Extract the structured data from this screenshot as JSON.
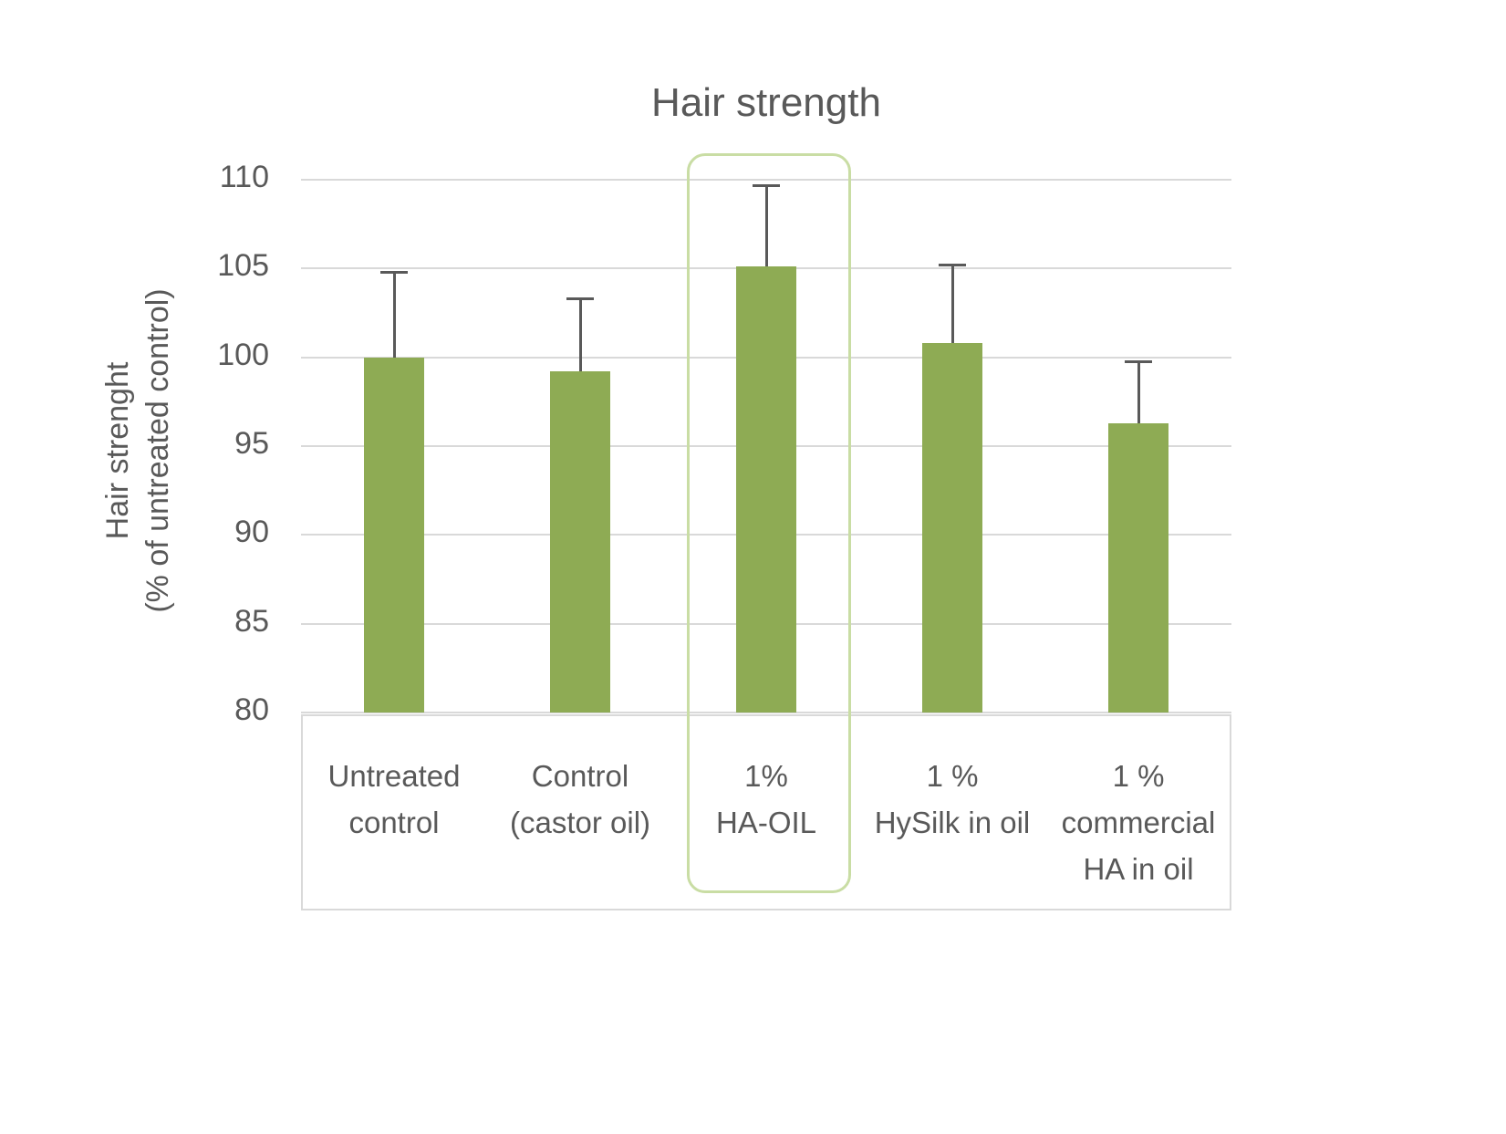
{
  "chart_data": {
    "type": "bar",
    "title": "Hair strength",
    "ylabel_line1": "Hair strenght",
    "ylabel_line2": "(% of untreated control)",
    "categories": [
      "Untreated\ncontrol",
      "Control\n(castor oil)",
      "1%\nHA-OIL",
      "1 %\nHySilk in oil",
      "1 %\ncommercial\nHA in oil"
    ],
    "values": [
      100.0,
      99.2,
      105.1,
      100.8,
      96.3
    ],
    "errors_upper": [
      4.8,
      4.1,
      4.6,
      4.4,
      3.5
    ],
    "ylim": [
      80,
      110
    ],
    "yticks": [
      110,
      105,
      100,
      95,
      90,
      85,
      80
    ],
    "highlighted_category_index": 2,
    "highlighted_category": "1%\nHA-OIL",
    "bar_color": "#8eab54",
    "gridline_color": "#d9d9d9",
    "text_color": "#595959",
    "error_bar_color": "#595959",
    "highlight_border_color": "#c9dda4",
    "legend": "none",
    "grid": "horizontal"
  }
}
